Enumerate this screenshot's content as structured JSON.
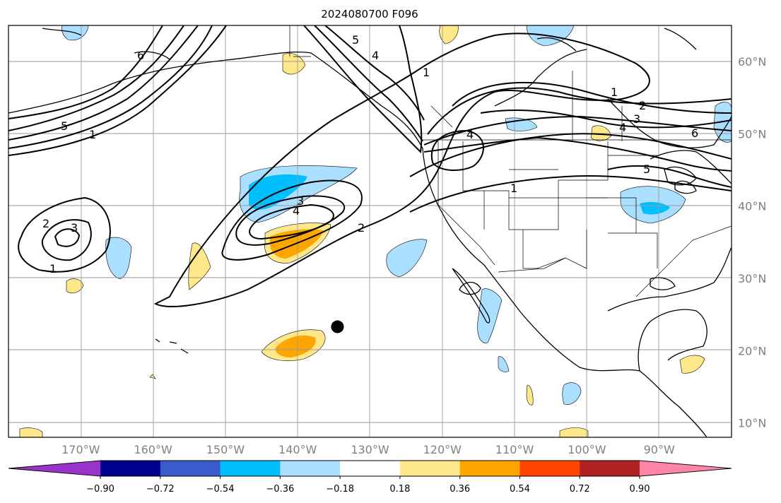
{
  "title": "2024080700 F096",
  "map": {
    "lon_range": [
      -180,
      -80
    ],
    "lat_range": [
      8,
      65
    ],
    "lon_ticks": [
      {
        "lon": -170,
        "label": "170°W"
      },
      {
        "lon": -160,
        "label": "160°W"
      },
      {
        "lon": -150,
        "label": "150°W"
      },
      {
        "lon": -140,
        "label": "140°W"
      },
      {
        "lon": -130,
        "label": "130°W"
      },
      {
        "lon": -120,
        "label": "120°W"
      },
      {
        "lon": -110,
        "label": "110°W"
      },
      {
        "lon": -100,
        "label": "100°W"
      },
      {
        "lon": -90,
        "label": "90°W"
      }
    ],
    "lat_ticks": [
      {
        "lat": 60,
        "label": "60°N"
      },
      {
        "lat": 50,
        "label": "50°N"
      },
      {
        "lat": 40,
        "label": "40°N"
      },
      {
        "lat": 30,
        "label": "30°N"
      },
      {
        "lat": 20,
        "label": "20°N"
      },
      {
        "lat": 10,
        "label": "10°N"
      }
    ],
    "marker": {
      "lon": -134.5,
      "lat": 23.3,
      "color": "#000000"
    }
  },
  "colorbar": {
    "colors": [
      "#9933cc",
      "#000090",
      "#3a5bcc",
      "#00bfff",
      "#aadfff",
      "#ffffff",
      "#ffe88a",
      "#ffa500",
      "#ff4500",
      "#b22222",
      "#ff85a8"
    ],
    "labels": [
      "−0.90",
      "−0.72",
      "−0.54",
      "−0.36",
      "−0.18",
      "0.18",
      "0.36",
      "0.54",
      "0.72",
      "0.90"
    ]
  },
  "contour_labels": [
    "1",
    "2",
    "3",
    "4",
    "5",
    "6"
  ]
}
